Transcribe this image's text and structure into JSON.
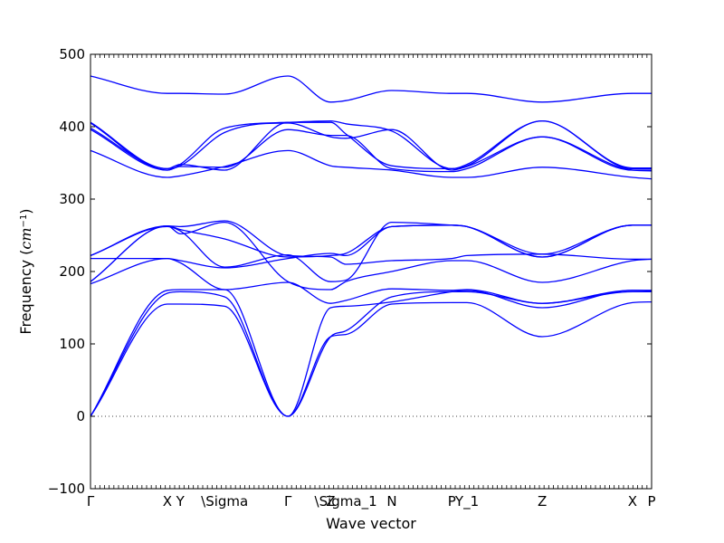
{
  "chart_data": {
    "type": "line",
    "title": "",
    "xlabel": "Wave vector",
    "ylabel_prefix": "Frequency (",
    "ylabel_unit_base": "cm",
    "ylabel_unit_exp": "−1",
    "ylabel_suffix": ")",
    "ylim": [
      -100,
      500
    ],
    "xlim": [
      0,
      1
    ],
    "yticks": [
      -100,
      0,
      100,
      200,
      300,
      400,
      500
    ],
    "zero_line": "dotted",
    "grid": false,
    "legend": "none",
    "line_color": "#0000ff",
    "high_symmetry_points": [
      {
        "label": "Γ",
        "x": 0.0
      },
      {
        "label": "X",
        "x": 0.137
      },
      {
        "label": "Y",
        "x": 0.16
      },
      {
        "label": "\\Sigma",
        "x": 0.239
      },
      {
        "label": "Γ",
        "x": 0.352
      },
      {
        "label": "Z",
        "x": 0.428
      },
      {
        "label": "\\Sigma_1",
        "x": 0.455
      },
      {
        "label": "N",
        "x": 0.537
      },
      {
        "label": "P",
        "x": 0.644
      },
      {
        "label": "Y_1",
        "x": 0.671
      },
      {
        "label": "Z",
        "x": 0.805
      },
      {
        "label": "X",
        "x": 0.966
      },
      {
        "label": "P",
        "x": 1.0
      }
    ],
    "x_sample": [
      0.0,
      0.137,
      0.16,
      0.239,
      0.352,
      0.428,
      0.455,
      0.537,
      0.644,
      0.671,
      0.805,
      0.966,
      1.0
    ],
    "series": [
      {
        "values": [
          0,
          155,
          155,
          152,
          0,
          110,
          113,
          155,
          157,
          157,
          110,
          157,
          158
        ]
      },
      {
        "values": [
          0,
          170,
          172,
          165,
          0,
          110,
          118,
          165,
          172,
          172,
          156,
          172,
          172
        ]
      },
      {
        "values": [
          0,
          174,
          175,
          175,
          0,
          150,
          152,
          158,
          172,
          174,
          150,
          174,
          174
        ]
      },
      {
        "values": [
          183,
          218,
          212,
          175,
          185,
          156,
          160,
          176,
          174,
          175,
          156,
          174,
          173
        ]
      },
      {
        "values": [
          186,
          263,
          252,
          268,
          186,
          175,
          186,
          200,
          215,
          215,
          185,
          215,
          217
        ]
      },
      {
        "values": [
          186,
          263,
          258,
          245,
          220,
          222,
          225,
          262,
          264,
          262,
          220,
          264,
          264
        ]
      },
      {
        "values": [
          218,
          218,
          215,
          205,
          218,
          225,
          222,
          262,
          264,
          262,
          220,
          264,
          264
        ]
      },
      {
        "values": [
          222,
          263,
          262,
          270,
          222,
          220,
          210,
          215,
          218,
          222,
          224,
          217,
          217
        ]
      },
      {
        "values": [
          222,
          262,
          256,
          206,
          223,
          186,
          188,
          268,
          264,
          262,
          224,
          264,
          264
        ]
      },
      {
        "values": [
          367,
          330,
          332,
          345,
          367,
          346,
          344,
          340,
          330,
          330,
          344,
          330,
          328
        ]
      },
      {
        "values": [
          396,
          340,
          345,
          344,
          396,
          388,
          388,
          342,
          338,
          342,
          386,
          340,
          339
        ]
      },
      {
        "values": [
          398,
          342,
          346,
          392,
          405,
          386,
          384,
          396,
          340,
          345,
          386,
          340,
          340
        ]
      },
      {
        "values": [
          405,
          340,
          348,
          398,
          406,
          408,
          404,
          394,
          342,
          346,
          408,
          342,
          342
        ]
      },
      {
        "values": [
          406,
          342,
          348,
          340,
          406,
          406,
          390,
          346,
          342,
          348,
          408,
          343,
          343
        ]
      },
      {
        "values": [
          470,
          446,
          446,
          445,
          470,
          434,
          436,
          450,
          446,
          446,
          434,
          446,
          446
        ]
      }
    ]
  }
}
